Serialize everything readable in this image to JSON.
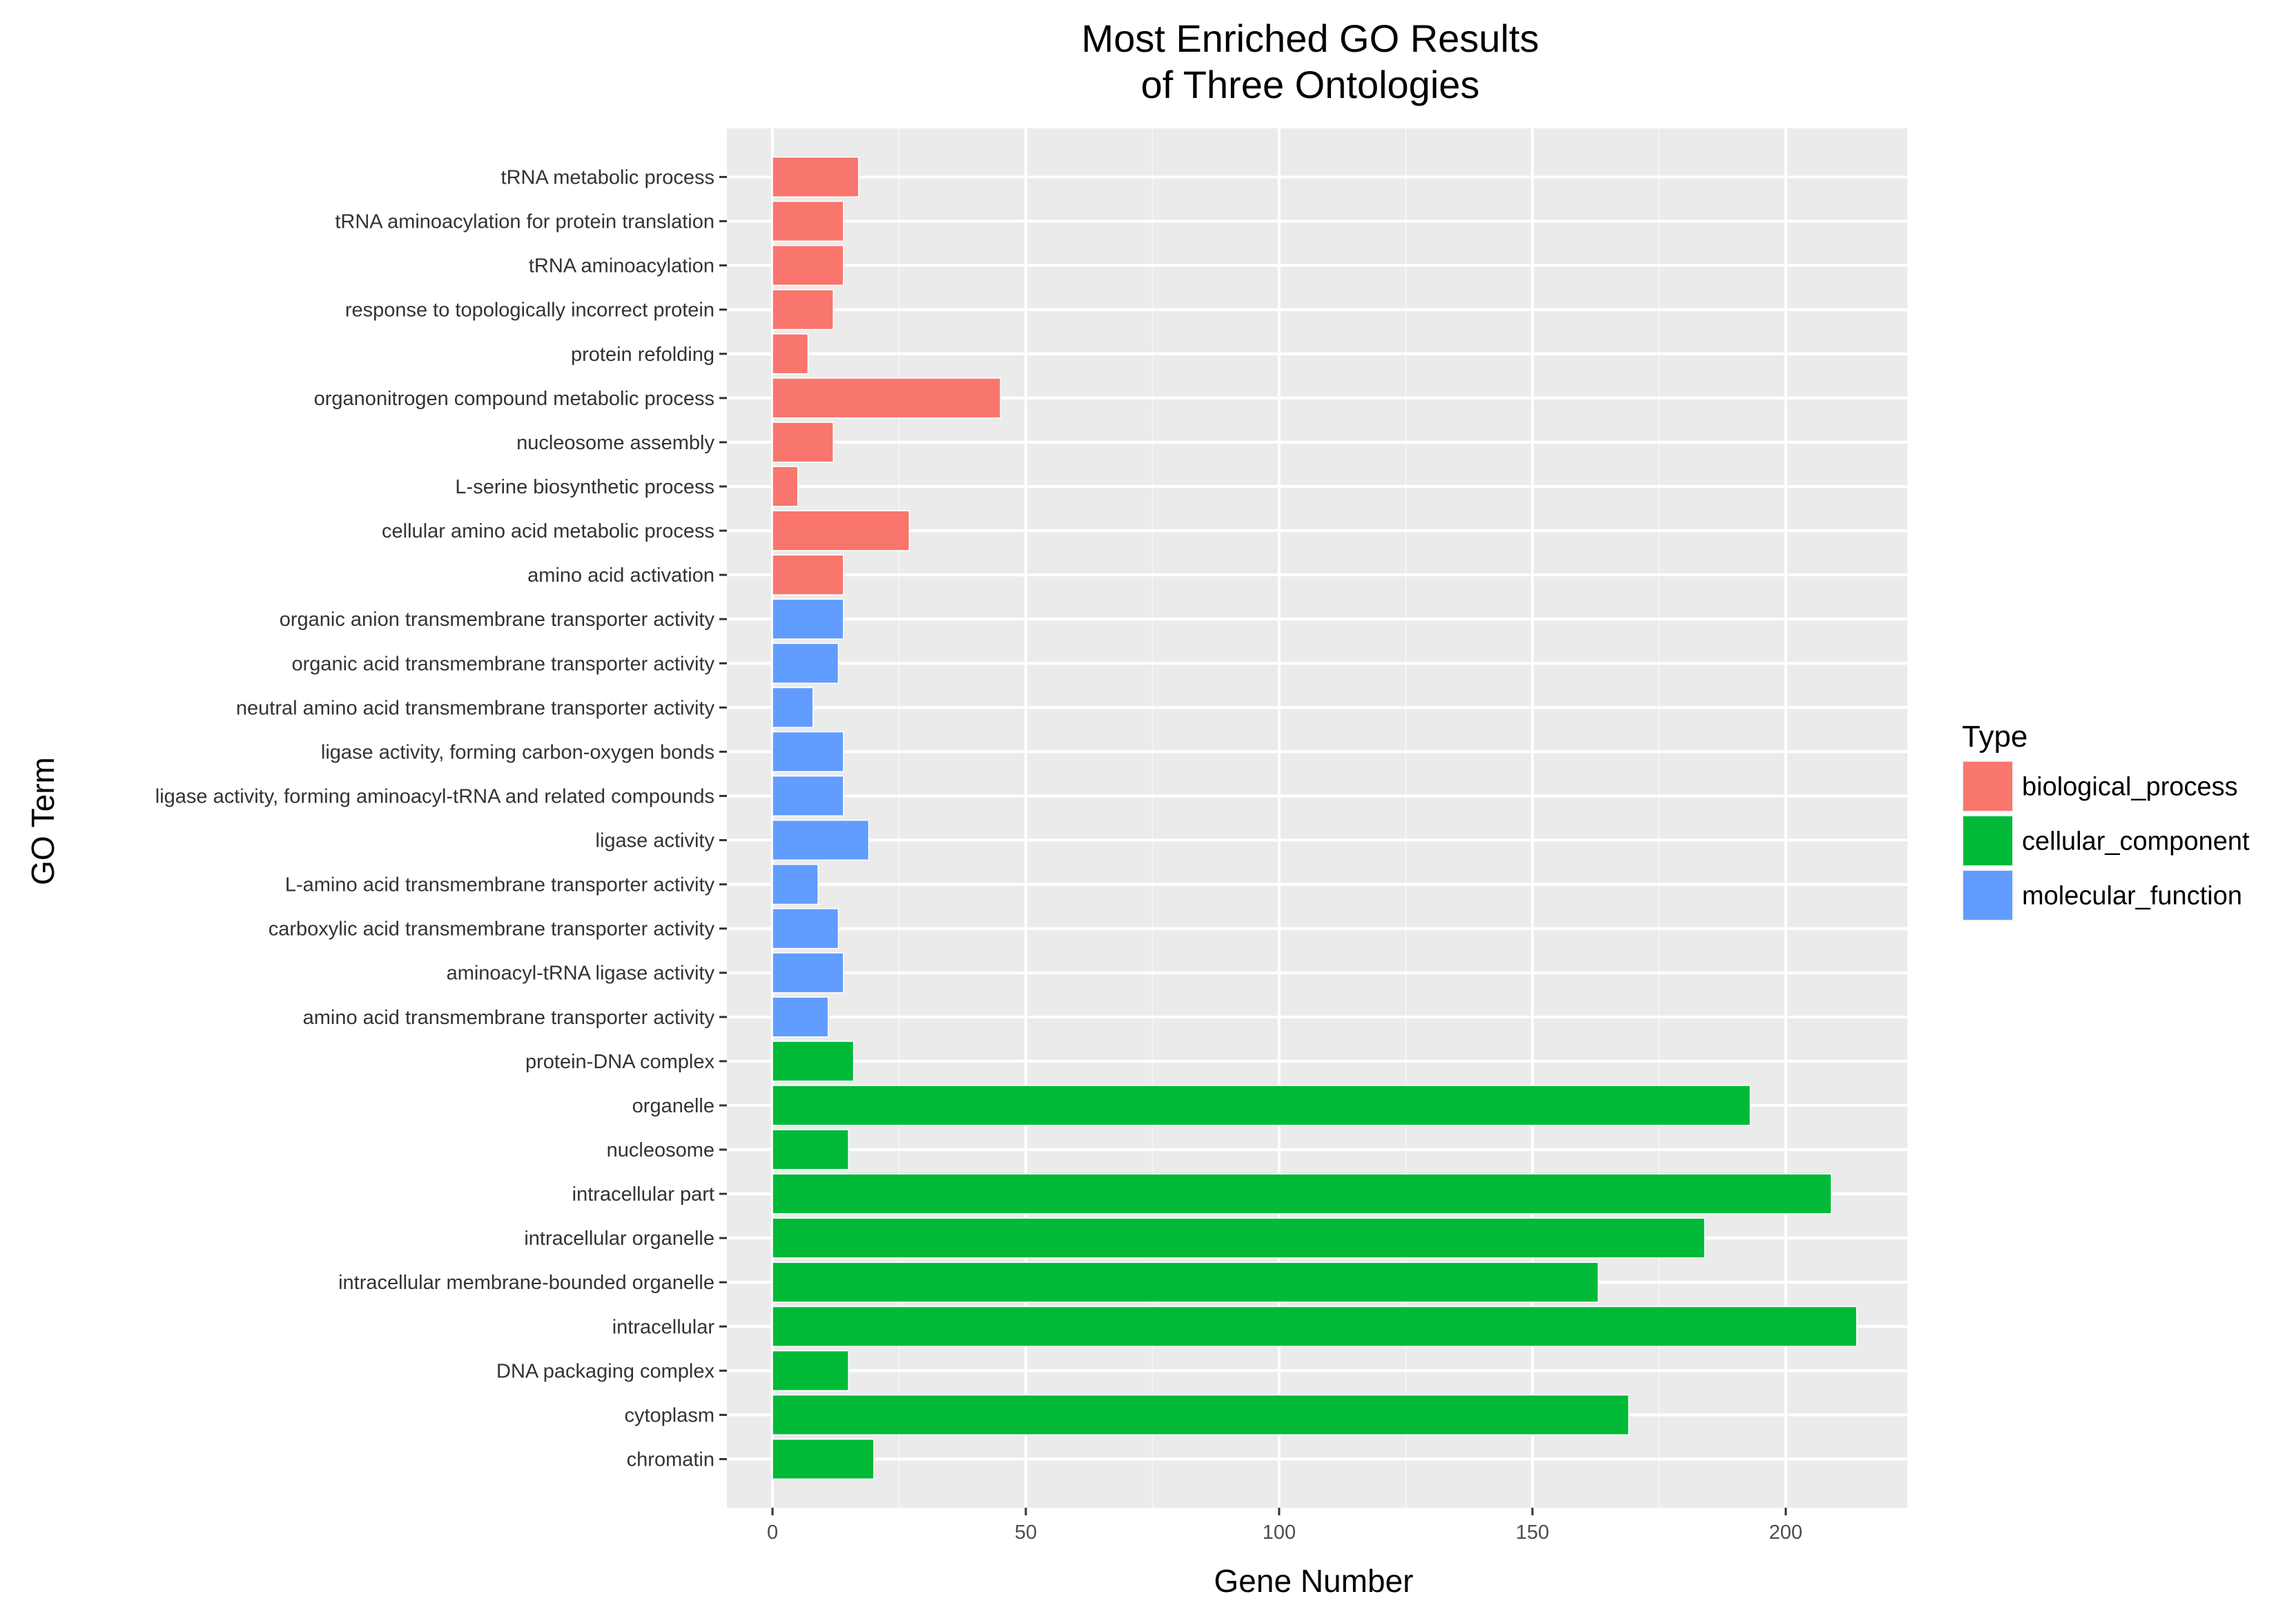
{
  "chart_data": {
    "type": "bar",
    "orientation": "horizontal",
    "title_lines": [
      "Most Enriched GO Results",
      "of Three Ontologies"
    ],
    "xlabel": "Gene Number",
    "ylabel": "GO Term",
    "xlim": [
      -9,
      224
    ],
    "x_ticks": [
      0,
      50,
      100,
      150,
      200
    ],
    "x_tick_labels": [
      "0",
      "50",
      "100",
      "150",
      "200"
    ],
    "grid": true,
    "legend": {
      "title": "Type",
      "position": "right",
      "entries": [
        {
          "label": "biological_process",
          "color": "#F8766D"
        },
        {
          "label": "cellular_component",
          "color": "#00BA38"
        },
        {
          "label": "molecular_function",
          "color": "#619CFF"
        }
      ]
    },
    "series": [
      {
        "name": "biological_process",
        "color": "#F8766D",
        "items": [
          {
            "category": "tRNA metabolic process",
            "value": 17
          },
          {
            "category": "tRNA aminoacylation for protein translation",
            "value": 14
          },
          {
            "category": "tRNA aminoacylation",
            "value": 14
          },
          {
            "category": "response to topologically incorrect protein",
            "value": 12
          },
          {
            "category": "protein refolding",
            "value": 7
          },
          {
            "category": "organonitrogen compound metabolic process",
            "value": 45
          },
          {
            "category": "nucleosome assembly",
            "value": 12
          },
          {
            "category": "L-serine biosynthetic process",
            "value": 5
          },
          {
            "category": "cellular amino acid metabolic process",
            "value": 27
          },
          {
            "category": "amino acid activation",
            "value": 14
          }
        ]
      },
      {
        "name": "molecular_function",
        "color": "#619CFF",
        "items": [
          {
            "category": "organic anion transmembrane transporter activity",
            "value": 14
          },
          {
            "category": "organic acid transmembrane transporter activity",
            "value": 13
          },
          {
            "category": "neutral amino acid transmembrane transporter activity",
            "value": 8
          },
          {
            "category": "ligase activity, forming carbon-oxygen bonds",
            "value": 14
          },
          {
            "category": "ligase activity, forming aminoacyl-tRNA and related compounds",
            "value": 14
          },
          {
            "category": "ligase activity",
            "value": 19
          },
          {
            "category": "L-amino acid transmembrane transporter activity",
            "value": 9
          },
          {
            "category": "carboxylic acid transmembrane transporter activity",
            "value": 13
          },
          {
            "category": "aminoacyl-tRNA ligase activity",
            "value": 14
          },
          {
            "category": "amino acid transmembrane transporter activity",
            "value": 11
          }
        ]
      },
      {
        "name": "cellular_component",
        "color": "#00BA38",
        "items": [
          {
            "category": "protein-DNA complex",
            "value": 16
          },
          {
            "category": "organelle",
            "value": 193
          },
          {
            "category": "nucleosome",
            "value": 15
          },
          {
            "category": "intracellular part",
            "value": 209
          },
          {
            "category": "intracellular organelle",
            "value": 184
          },
          {
            "category": "intracellular membrane-bounded organelle",
            "value": 163
          },
          {
            "category": "intracellular",
            "value": 214
          },
          {
            "category": "DNA packaging complex",
            "value": 15
          },
          {
            "category": "cytoplasm",
            "value": 169
          },
          {
            "category": "chromatin",
            "value": 20
          }
        ]
      }
    ]
  }
}
